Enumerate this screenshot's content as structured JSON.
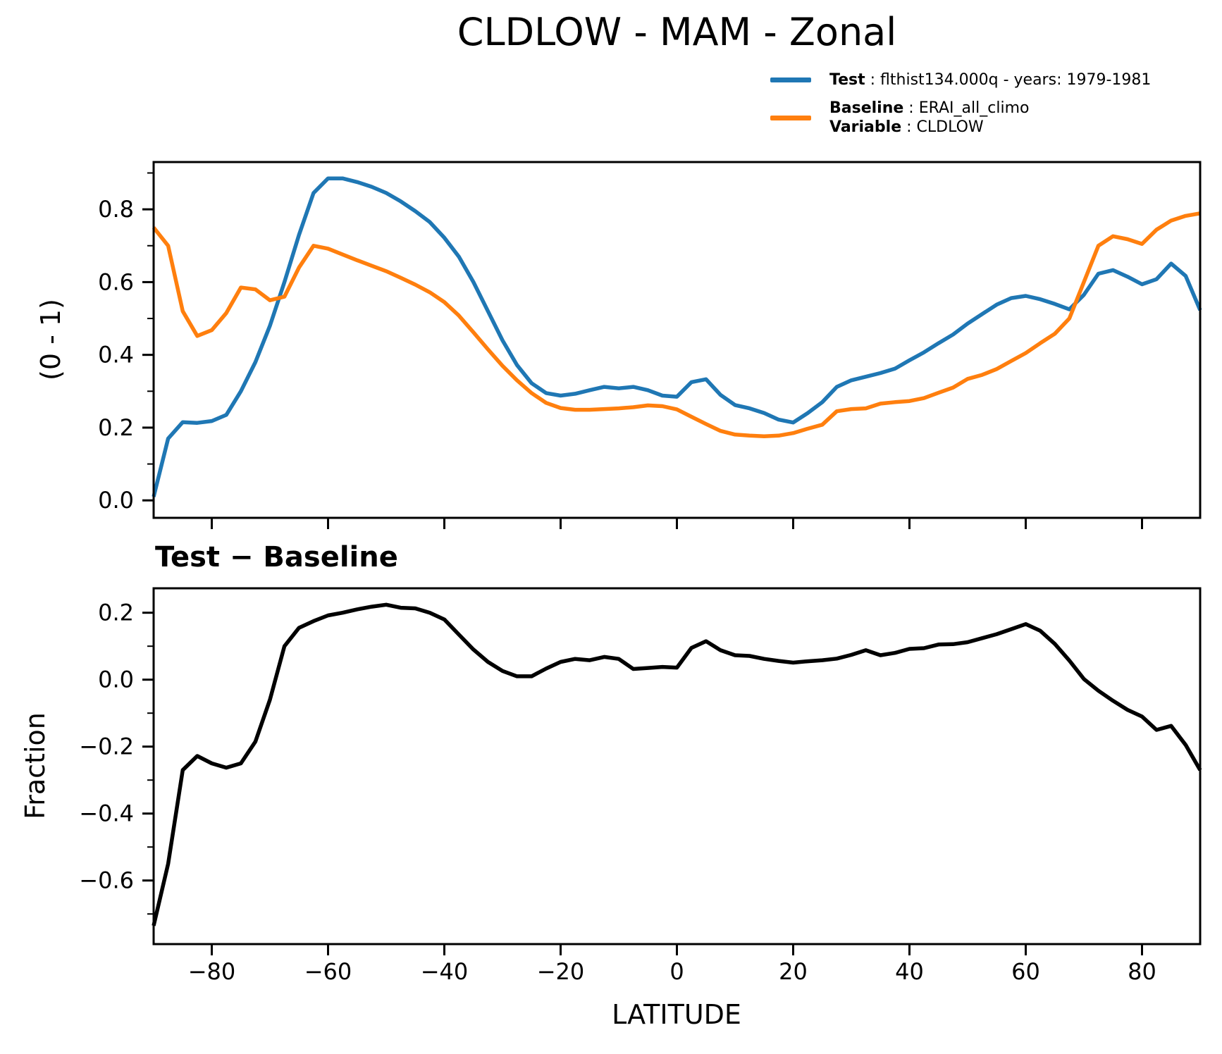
{
  "figure": {
    "title": "CLDLOW - MAM - Zonal",
    "background_color": "#ffffff"
  },
  "legend": {
    "separator": " : ",
    "entries": [
      {
        "label": "Test",
        "value": "flthist134.000q - years: 1979-1981",
        "color": "#1f77b4"
      },
      {
        "label": "Baseline",
        "value": "ERAI_all_climo",
        "color": "#ff7f0e"
      },
      {
        "label": "Variable",
        "value": "CLDLOW",
        "color": null
      }
    ]
  },
  "panels": {
    "top_ylabel": "(0 - 1)",
    "bottom_title": "Test − Baseline",
    "bottom_ylabel": "Fraction",
    "bottom_xlabel": "LATITUDE"
  },
  "chart_data": [
    {
      "type": "line",
      "title": "CLDLOW - MAM - Zonal",
      "xlabel": "",
      "ylabel": "(0 - 1)",
      "grid": false,
      "legend_position": "above axes, upper right",
      "xlim": [
        -90,
        90
      ],
      "ylim": [
        -0.048,
        0.93
      ],
      "xticks": [
        -80,
        -60,
        -40,
        -20,
        0,
        20,
        40,
        60,
        80
      ],
      "xtick_labels": null,
      "yticks": [
        0.0,
        0.2,
        0.4,
        0.6,
        0.8
      ],
      "ytick_labels": [
        "0.0",
        "0.2",
        "0.4",
        "0.6",
        "0.8"
      ],
      "yminor": [
        0.1,
        0.3,
        0.5,
        0.7,
        0.9
      ],
      "x": [
        -90,
        -87.5,
        -85,
        -82.5,
        -80,
        -77.5,
        -75,
        -72.5,
        -70,
        -67.5,
        -65,
        -62.5,
        -60,
        -57.5,
        -55,
        -52.5,
        -50,
        -47.5,
        -45,
        -42.5,
        -40,
        -37.5,
        -35,
        -32.5,
        -30,
        -27.5,
        -25,
        -22.5,
        -20,
        -17.5,
        -15,
        -12.5,
        -10,
        -7.5,
        -5,
        -2.5,
        0,
        2.5,
        5,
        7.5,
        10,
        12.5,
        15,
        17.5,
        20,
        22.5,
        25,
        27.5,
        30,
        32.5,
        35,
        37.5,
        40,
        42.5,
        45,
        47.5,
        50,
        52.5,
        55,
        57.5,
        60,
        62.5,
        65,
        67.5,
        70,
        72.5,
        75,
        77.5,
        80,
        82.5,
        85,
        87.5,
        90
      ],
      "series": [
        {
          "name": "Test",
          "color": "#1f77b4",
          "values": [
            0.01,
            0.17,
            0.215,
            0.213,
            0.218,
            0.235,
            0.3,
            0.38,
            0.48,
            0.6,
            0.73,
            0.845,
            0.885,
            0.885,
            0.875,
            0.862,
            0.845,
            0.822,
            0.795,
            0.765,
            0.722,
            0.67,
            0.6,
            0.52,
            0.44,
            0.372,
            0.322,
            0.295,
            0.288,
            0.293,
            0.303,
            0.312,
            0.308,
            0.312,
            0.303,
            0.288,
            0.285,
            0.325,
            0.333,
            0.29,
            0.262,
            0.253,
            0.24,
            0.222,
            0.214,
            0.24,
            0.27,
            0.312,
            0.33,
            0.34,
            0.35,
            0.362,
            0.385,
            0.407,
            0.432,
            0.456,
            0.486,
            0.512,
            0.538,
            0.556,
            0.562,
            0.553,
            0.54,
            0.525,
            0.565,
            0.623,
            0.633,
            0.615,
            0.594,
            0.608,
            0.651,
            0.617,
            0.523
          ]
        },
        {
          "name": "Baseline",
          "color": "#ff7f0e",
          "values": [
            0.75,
            0.7,
            0.52,
            0.452,
            0.468,
            0.515,
            0.585,
            0.58,
            0.55,
            0.56,
            0.64,
            0.7,
            0.692,
            0.676,
            0.66,
            0.645,
            0.63,
            0.612,
            0.593,
            0.572,
            0.545,
            0.508,
            0.462,
            0.415,
            0.37,
            0.33,
            0.295,
            0.268,
            0.254,
            0.249,
            0.249,
            0.251,
            0.253,
            0.256,
            0.261,
            0.259,
            0.25,
            0.23,
            0.21,
            0.191,
            0.181,
            0.178,
            0.176,
            0.178,
            0.185,
            0.197,
            0.208,
            0.245,
            0.251,
            0.253,
            0.266,
            0.27,
            0.273,
            0.281,
            0.296,
            0.31,
            0.334,
            0.345,
            0.361,
            0.383,
            0.405,
            0.432,
            0.458,
            0.5,
            0.6,
            0.7,
            0.726,
            0.718,
            0.705,
            0.744,
            0.769,
            0.782,
            0.789
          ]
        }
      ]
    },
    {
      "type": "line",
      "title": "Test − Baseline",
      "xlabel": "LATITUDE",
      "ylabel": "Fraction",
      "grid": false,
      "xlim": [
        -90,
        90
      ],
      "ylim": [
        -0.79,
        0.273
      ],
      "xticks": [
        -80,
        -60,
        -40,
        -20,
        0,
        20,
        40,
        60,
        80
      ],
      "xtick_labels": [
        "−80",
        "−60",
        "−40",
        "−20",
        "0",
        "20",
        "40",
        "60",
        "80"
      ],
      "yticks": [
        0.2,
        0.0,
        -0.2,
        -0.4,
        -0.6
      ],
      "ytick_labels": [
        "0.2",
        "0.0",
        "−0.2",
        "−0.4",
        "−0.6"
      ],
      "yminor": [
        0.1,
        -0.1,
        -0.3,
        -0.5,
        -0.7
      ],
      "x": [
        -90,
        -87.5,
        -85,
        -82.5,
        -80,
        -77.5,
        -75,
        -72.5,
        -70,
        -67.5,
        -65,
        -62.5,
        -60,
        -57.5,
        -55,
        -52.5,
        -50,
        -47.5,
        -45,
        -42.5,
        -40,
        -37.5,
        -35,
        -32.5,
        -30,
        -27.5,
        -25,
        -22.5,
        -20,
        -17.5,
        -15,
        -12.5,
        -10,
        -7.5,
        -5,
        -2.5,
        0,
        2.5,
        5,
        7.5,
        10,
        12.5,
        15,
        17.5,
        20,
        22.5,
        25,
        27.5,
        30,
        32.5,
        35,
        37.5,
        40,
        42.5,
        45,
        47.5,
        50,
        52.5,
        55,
        57.5,
        60,
        62.5,
        65,
        67.5,
        70,
        72.5,
        75,
        77.5,
        80,
        82.5,
        85,
        87.5,
        90
      ],
      "series": [
        {
          "name": "Test − Baseline",
          "color": "#000000",
          "values": [
            -0.735,
            -0.55,
            -0.27,
            -0.228,
            -0.25,
            -0.263,
            -0.25,
            -0.185,
            -0.06,
            0.1,
            0.155,
            0.175,
            0.192,
            0.2,
            0.21,
            0.218,
            0.224,
            0.215,
            0.213,
            0.2,
            0.18,
            0.135,
            0.09,
            0.053,
            0.026,
            0.01,
            0.01,
            0.033,
            0.053,
            0.062,
            0.058,
            0.068,
            0.062,
            0.032,
            0.035,
            0.038,
            0.036,
            0.095,
            0.115,
            0.088,
            0.073,
            0.071,
            0.062,
            0.056,
            0.051,
            0.055,
            0.058,
            0.063,
            0.074,
            0.088,
            0.073,
            0.08,
            0.092,
            0.094,
            0.105,
            0.106,
            0.112,
            0.124,
            0.136,
            0.151,
            0.166,
            0.146,
            0.107,
            0.057,
            0.002,
            -0.033,
            -0.063,
            -0.09,
            -0.11,
            -0.15,
            -0.138,
            -0.195,
            -0.27
          ]
        }
      ]
    }
  ]
}
